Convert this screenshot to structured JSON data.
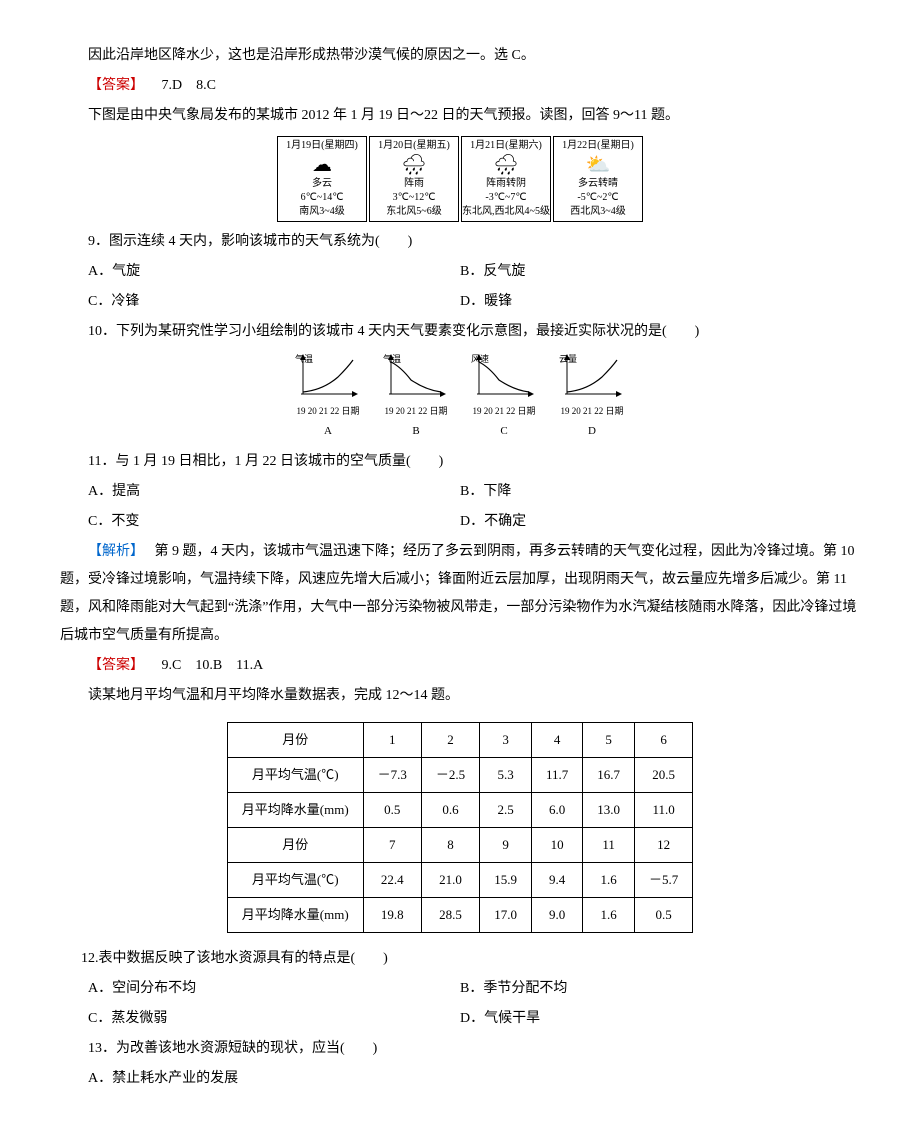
{
  "p_intro_tail": "因此沿岸地区降水少，这也是沿岸形成热带沙漠气候的原因之一。选 C。",
  "ans_7_8_label": "【答案】",
  "ans_7_8": "7.D　8.C",
  "p_forecast_intro": "下图是由中央气象局发布的某城市 2012 年 1 月 19 日～22 日的天气预报。读图，回答 9～11 题。",
  "forecast": [
    {
      "date": "1月19日(星期四)",
      "icon": "☁",
      "cond": "多云",
      "temp": "6℃~14℃",
      "wind": "南风3~4级"
    },
    {
      "date": "1月20日(星期五)",
      "icon": "🌧",
      "cond": "阵雨",
      "temp": "3℃~12℃",
      "wind": "东北风5~6级"
    },
    {
      "date": "1月21日(星期六)",
      "icon": "🌧",
      "cond": "阵雨转阴",
      "temp": "-3℃~7℃",
      "wind": "东北风,西北风4~5级"
    },
    {
      "date": "1月22日(星期日)",
      "icon": "⛅",
      "cond": "多云转晴",
      "temp": "-5℃~2℃",
      "wind": "西北风3~4级"
    }
  ],
  "q9": "9．图示连续 4 天内，影响该城市的天气系统为(　　)",
  "q9a": "A．气旋",
  "q9b": "B．反气旋",
  "q9c": "C．冷锋",
  "q9d": "D．暖锋",
  "q10": "10．下列为某研究性学习小组绘制的该城市 4 天内天气要素变化示意图，最接近实际状况的是(　　)",
  "charts": {
    "xticks": "19 20 21 22 日期",
    "items": [
      {
        "ylabel": "气温",
        "letter": "A",
        "shape": "up"
      },
      {
        "ylabel": "气温",
        "letter": "B",
        "shape": "down"
      },
      {
        "ylabel": "风速",
        "letter": "C",
        "shape": "down"
      },
      {
        "ylabel": "云量",
        "letter": "D",
        "shape": "up"
      }
    ],
    "stroke": "#000",
    "bg": "#fff"
  },
  "q11": "11．与 1 月 19 日相比，1 月 22 日该城市的空气质量(　　)",
  "q11a": "A．提高",
  "q11b": "B．下降",
  "q11c": "C．不变",
  "q11d": "D．不确定",
  "analysis_9_11_label": "【解析】",
  "analysis_9_11": "第 9 题，4 天内，该城市气温迅速下降；经历了多云到阴雨，再多云转晴的天气变化过程，因此为冷锋过境。第 10 题，受冷锋过境影响，气温持续下降，风速应先增大后减小；锋面附近云层加厚，出现阴雨天气，故云量应先增多后减少。第 11 题，风和降雨能对大气起到“洗涤”作用，大气中一部分污染物被风带走，一部分污染物作为水汽凝结核随雨水降落，因此冷锋过境后城市空气质量有所提高。",
  "ans_9_11_label": "【答案】",
  "ans_9_11": "9.C　10.B　11.A",
  "p_table_intro": "读某地月平均气温和月平均降水量数据表，完成 12～14 题。",
  "table": {
    "row_labels": [
      "月份",
      "月平均气温(℃)",
      "月平均降水量(mm)",
      "月份",
      "月平均气温(℃)",
      "月平均降水量(mm)"
    ],
    "rows": [
      [
        "1",
        "2",
        "3",
        "4",
        "5",
        "6"
      ],
      [
        "－7.3",
        "－2.5",
        "5.3",
        "11.7",
        "16.7",
        "20.5"
      ],
      [
        "0.5",
        "0.6",
        "2.5",
        "6.0",
        "13.0",
        "11.0"
      ],
      [
        "7",
        "8",
        "9",
        "10",
        "11",
        "12"
      ],
      [
        "22.4",
        "21.0",
        "15.9",
        "9.4",
        "1.6",
        "－5.7"
      ],
      [
        "19.8",
        "28.5",
        "17.0",
        "9.0",
        "1.6",
        "0.5"
      ]
    ]
  },
  "q12": "12.表中数据反映了该地水资源具有的特点是(　　)",
  "q12a": "A．空间分布不均",
  "q12b": "B．季节分配不均",
  "q12c": "C．蒸发微弱",
  "q12d": "D．气候干旱",
  "q13": "13．为改善该地水资源短缺的现状，应当(　　)",
  "q13a": "A．禁止耗水产业的发展"
}
